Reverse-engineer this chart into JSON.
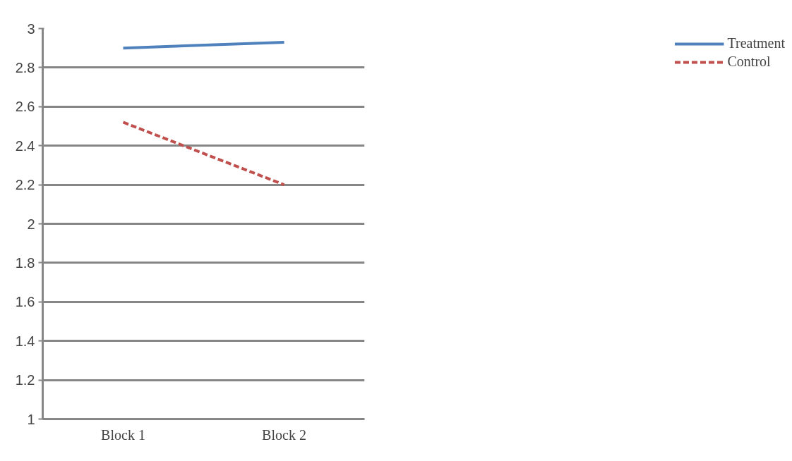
{
  "chart_data": {
    "type": "line",
    "categories": [
      "Block 1",
      "Block 2"
    ],
    "series": [
      {
        "name": "Treatment",
        "color": "#4f81bd",
        "values": [
          2.9,
          2.93
        ],
        "line_style": "solid"
      },
      {
        "name": "Control",
        "color": "#c0504d",
        "values": [
          2.52,
          2.2
        ],
        "line_style": "dashed"
      }
    ],
    "ylim": [
      1,
      3
    ],
    "yticks": [
      1,
      1.2,
      1.4,
      1.6,
      1.8,
      2,
      2.2,
      2.4,
      2.6,
      2.8,
      3
    ],
    "grid": "y",
    "legend": "right",
    "marker": "none"
  }
}
